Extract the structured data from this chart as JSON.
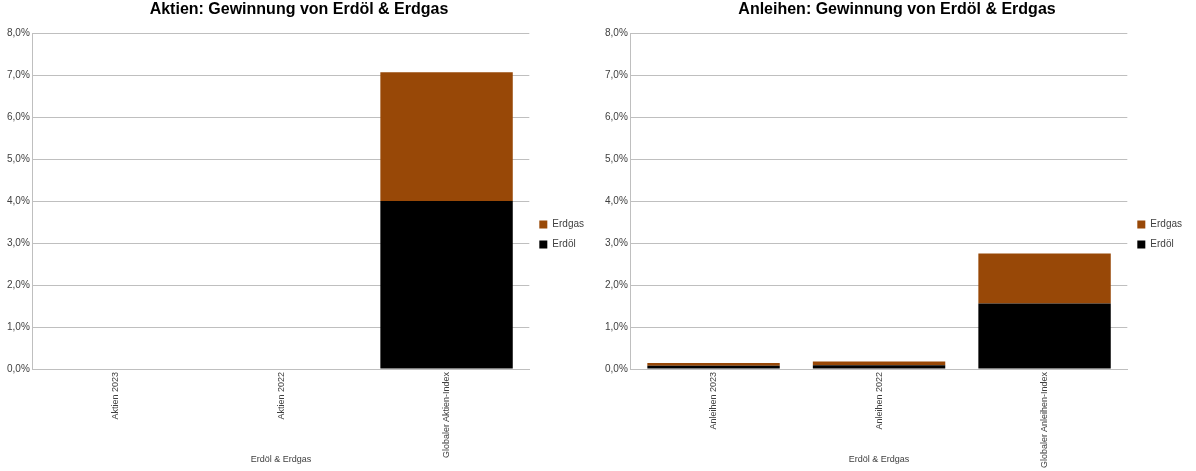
{
  "chart_data": [
    {
      "type": "bar",
      "title": "Aktien: Gewinnung von Erdöl & Erdgas",
      "xlabel": "Erdöl & Erdgas",
      "categories": [
        "Aktien 2023",
        "Aktien 2022",
        "Globaler Aktien-Index"
      ],
      "stacked": true,
      "legend": "right",
      "grid": "y",
      "series": [
        {
          "name": "Erdöl",
          "color": "#000000",
          "values": [
            0,
            0,
            4.0
          ]
        },
        {
          "name": "Erdgas",
          "color": "#984807",
          "values": [
            0,
            0,
            3.07
          ]
        }
      ],
      "ylim": [
        0,
        8
      ],
      "yticks": [
        {
          "value": 0,
          "label": "0,0%"
        },
        {
          "value": 1,
          "label": "1,0%"
        },
        {
          "value": 2,
          "label": "2,0%"
        },
        {
          "value": 3,
          "label": "3,0%"
        },
        {
          "value": 4,
          "label": "4,0%"
        },
        {
          "value": 5,
          "label": "5,0%"
        },
        {
          "value": 6,
          "label": "6,0%"
        },
        {
          "value": 7,
          "label": "7,0%"
        },
        {
          "value": 8,
          "label": "8,0%"
        }
      ]
    },
    {
      "type": "bar",
      "title": "Anleihen: Gewinnung von Erdöl & Erdgas",
      "xlabel": "Erdöl & Erdgas",
      "categories": [
        "Anleihen 2023",
        "Anleihen 2022",
        "Globaler Anleihen-Index"
      ],
      "stacked": true,
      "legend": "right",
      "grid": "y",
      "series": [
        {
          "name": "Erdöl",
          "color": "#000000",
          "values": [
            0.08,
            0.09,
            1.56
          ]
        },
        {
          "name": "Erdgas",
          "color": "#984807",
          "values": [
            0.06,
            0.09,
            1.19
          ]
        }
      ],
      "ylim": [
        0,
        8
      ],
      "yticks": [
        {
          "value": 0,
          "label": "0,0%"
        },
        {
          "value": 1,
          "label": "1,0%"
        },
        {
          "value": 2,
          "label": "2,0%"
        },
        {
          "value": 3,
          "label": "3,0%"
        },
        {
          "value": 4,
          "label": "4,0%"
        },
        {
          "value": 5,
          "label": "5,0%"
        },
        {
          "value": 6,
          "label": "6,0%"
        },
        {
          "value": 7,
          "label": "7,0%"
        },
        {
          "value": 8,
          "label": "8,0%"
        }
      ]
    }
  ]
}
